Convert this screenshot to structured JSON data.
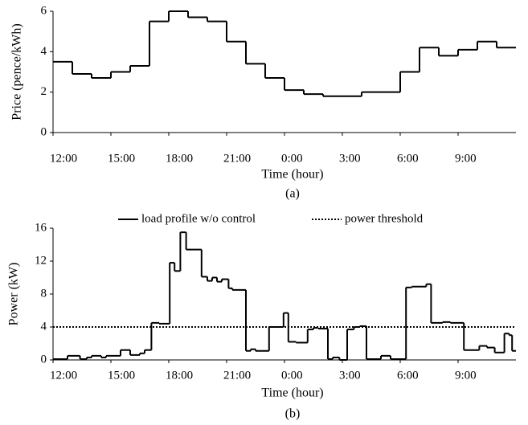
{
  "chart_data": [
    {
      "type": "step",
      "caption": "(a)",
      "xlabel": "Time (hour)",
      "ylabel": "Price (pence/kWh)",
      "xlim": [
        12,
        36
      ],
      "ylim": [
        0,
        6
      ],
      "yticks": [
        0,
        2,
        4,
        6
      ],
      "xticks": [
        {
          "value": 12,
          "label": "12:00"
        },
        {
          "value": 15,
          "label": "15:00"
        },
        {
          "value": 18,
          "label": "18:00"
        },
        {
          "value": 21,
          "label": "21:00"
        },
        {
          "value": 24,
          "label": "0:00"
        },
        {
          "value": 27,
          "label": "3:00"
        },
        {
          "value": 30,
          "label": "6:00"
        },
        {
          "value": 33,
          "label": "9:00"
        }
      ],
      "series": [
        {
          "color": "#000000",
          "dash": "solid",
          "x": [
            12,
            13,
            14,
            15,
            16,
            17,
            18,
            19,
            20,
            21,
            22,
            23,
            24,
            25,
            26,
            27,
            28,
            29,
            30,
            31,
            32,
            33,
            34,
            35
          ],
          "values": [
            3.5,
            2.9,
            2.7,
            3.0,
            3.3,
            5.5,
            6.0,
            5.7,
            5.5,
            4.5,
            3.4,
            2.7,
            2.1,
            1.9,
            1.8,
            1.8,
            2.0,
            2.0,
            3.0,
            4.2,
            3.8,
            4.1,
            4.5,
            4.2
          ]
        }
      ]
    },
    {
      "type": "step",
      "caption": "(b)",
      "xlabel": "Time (hour)",
      "ylabel": "Power  (kW)",
      "legend": "top",
      "xlim": [
        12,
        36
      ],
      "ylim": [
        0,
        16
      ],
      "yticks": [
        0,
        4,
        8,
        12,
        16
      ],
      "xticks": [
        {
          "value": 12,
          "label": "12:00"
        },
        {
          "value": 15,
          "label": "15:00"
        },
        {
          "value": 18,
          "label": "18:00"
        },
        {
          "value": 21,
          "label": "21:00"
        },
        {
          "value": 24,
          "label": "0:00"
        },
        {
          "value": 27,
          "label": "3:00"
        },
        {
          "value": 30,
          "label": "6:00"
        },
        {
          "value": 33,
          "label": "9:00"
        }
      ],
      "series": [
        {
          "name": "load profile w/o control",
          "color": "#000000",
          "dash": "solid",
          "x": [
            12,
            12.75,
            13.4,
            13.75,
            14,
            14.5,
            14.75,
            15.5,
            16,
            16.5,
            16.75,
            17.1,
            17.5,
            18.05,
            18.3,
            18.6,
            18.9,
            19.7,
            20,
            20.25,
            20.5,
            20.75,
            21.1,
            21.3,
            22,
            22.25,
            22.5,
            23.2,
            23.95,
            24.2,
            24.6,
            25.2,
            25.5,
            25.75,
            26.25,
            26.5,
            26.85,
            27.25,
            27.6,
            27.9,
            28.25,
            29,
            29.5,
            30.3,
            30.6,
            31.35,
            31.6,
            32.2,
            32.6,
            33.3,
            34.1,
            34.5,
            34.9,
            35.4,
            35.65,
            35.8
          ],
          "values": [
            0.1,
            0.5,
            0.1,
            0.3,
            0.5,
            0.3,
            0.5,
            1.2,
            0.6,
            0.8,
            1.2,
            4.5,
            4.4,
            11.8,
            10.8,
            15.5,
            13.4,
            10.1,
            9.6,
            10.0,
            9.5,
            9.8,
            8.7,
            8.5,
            1.1,
            1.3,
            1.1,
            4.0,
            5.7,
            2.2,
            2.1,
            3.7,
            3.9,
            3.8,
            0.1,
            0.3,
            0.0,
            3.7,
            4.0,
            4.1,
            0.1,
            0.5,
            0.1,
            8.8,
            8.9,
            9.2,
            4.5,
            4.6,
            4.5,
            1.2,
            1.7,
            1.5,
            0.9,
            3.2,
            3.0,
            1.1
          ]
        },
        {
          "name": "power threshold",
          "color": "#000000",
          "dash": "dotted",
          "x": [
            12
          ],
          "values": [
            4
          ]
        }
      ]
    }
  ]
}
